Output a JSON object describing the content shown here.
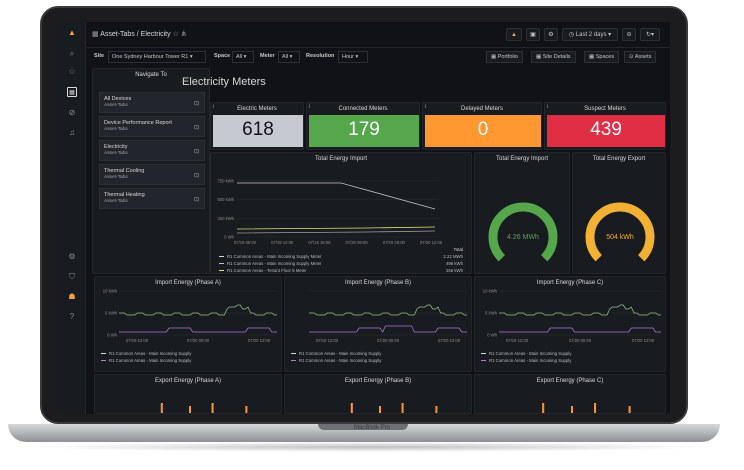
{
  "device": {
    "brand": "MacBook Pro"
  },
  "breadcrumb": {
    "folder": "Asset-Tabs",
    "sep": "/",
    "dashboard": "Electricity"
  },
  "toolbar": {
    "time_range": "Last 2 days"
  },
  "variables": {
    "site_label": "Site",
    "site_value": "One Sydney Harbour Tower R1",
    "space_label": "Space",
    "space_value": "All",
    "meter_label": "Meter",
    "meter_value": "All",
    "resolution_label": "Resolution",
    "resolution_value": "Hour"
  },
  "links": [
    "Portfolio",
    "Site Details",
    "Spaces",
    "Assets"
  ],
  "nav": {
    "title": "Navigate To",
    "items": [
      {
        "label": "All Devices",
        "sub": "Asset-Tabs"
      },
      {
        "label": "Device Performance Report",
        "sub": "Asset-Tabs"
      },
      {
        "label": "Electricity",
        "sub": "Asset-Tabs"
      },
      {
        "label": "Thermal Cooling",
        "sub": "Asset-Tabs"
      },
      {
        "label": "Thermal Heating",
        "sub": "Asset-Tabs"
      }
    ]
  },
  "heading": "Electricity Meters",
  "stats": [
    {
      "title": "Electric Meters",
      "value": "618",
      "color": "#c7c9d1",
      "text": "#111217"
    },
    {
      "title": "Connected Meters",
      "value": "179",
      "color": "#56a64b",
      "text": "#ffffff"
    },
    {
      "title": "Delayed Meters",
      "value": "0",
      "color": "#ff9830",
      "text": "#ffffff"
    },
    {
      "title": "Suspect Meters",
      "value": "439",
      "color": "#e02f44",
      "text": "#ffffff"
    }
  ],
  "import_chart": {
    "title": "Total Energy Import",
    "yticks": [
      "750 kWh",
      "500 kWh",
      "250 kWh",
      "0 Wh"
    ],
    "xticks": [
      "07/19 06:00",
      "07/19 12:00",
      "07/19 18:00",
      "07/20 00:00",
      "07/20 06:00",
      "07/20 12:00"
    ],
    "total_header": "Total",
    "legend": [
      {
        "name": "R1 Common Areas - Main Incoming Supply Meter",
        "total": "2.22 MWh",
        "color": "#d8d9da"
      },
      {
        "name": "R1 Common Areas - Main Incoming Supply Meter",
        "total": "498 kWh",
        "color": "#c4c4c4"
      },
      {
        "name": "R1 Common Areas - Tenant Floor 5 Meter",
        "total": "255 kWh",
        "color": "#e0e07a"
      }
    ]
  },
  "gauges": [
    {
      "title": "Total Energy Import",
      "value_text": "4.26 MWh",
      "fraction": 1.0,
      "color": "#56a64b"
    },
    {
      "title": "Total Energy Export",
      "value_text": "504 kWh",
      "fraction": 1.0,
      "color": "#f2b134"
    }
  ],
  "phase_import": [
    {
      "title": "Import Energy (Phase A)",
      "yticks": [
        "10 kWh",
        "5 kWh",
        "0 Wh"
      ],
      "xticks": [
        "07/19 12:00",
        "07/20 00:00",
        "07/20 12:00"
      ]
    },
    {
      "title": "Import Energy (Phase B)",
      "yticks": [
        "",
        "",
        ""
      ],
      "xticks": [
        "07/19 12:00",
        "07/20 00:00",
        "07/20 12:00"
      ]
    },
    {
      "title": "Import Energy (Phase C)",
      "yticks": [
        "10 kWh",
        "5 kWh",
        "0 Wh"
      ],
      "xticks": [
        "07/19 12:00",
        "07/20 00:00",
        "07/20 12:00"
      ]
    }
  ],
  "phase_legend": [
    "R1 Common Areas - Main Incoming Supply",
    "R1 Common Areas - Main Incoming Supply"
  ],
  "phase_export": [
    {
      "title": "Export Energy (Phase A)"
    },
    {
      "title": "Export Energy (Phase B)"
    },
    {
      "title": "Export Energy (Phase C)"
    }
  ]
}
